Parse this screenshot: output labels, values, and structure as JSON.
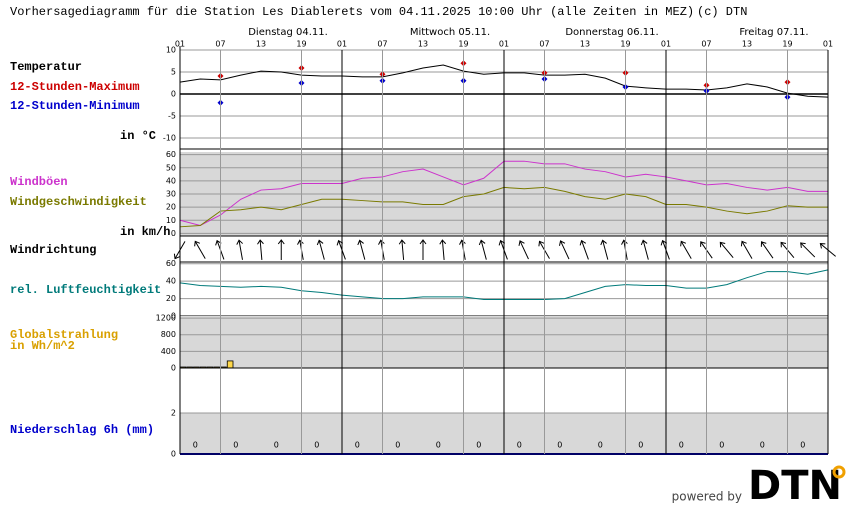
{
  "header": {
    "title": "Vorhersagediagramm für die Station Les Diablerets vom 04.11.2025 10:00 Uhr (alle Zeiten in MEZ)",
    "copyright": "(c) DTN"
  },
  "footer": {
    "powered_by": "powered by",
    "logo": "DTN"
  },
  "chart_data": [
    {
      "type": "line",
      "days": [
        "Dienstag 04.11.",
        "Mittwoch 05.11.",
        "Donnerstag 06.11.",
        "Freitag 07.11."
      ],
      "xlim": [
        0,
        96
      ],
      "xticks": [
        {
          "value": 0,
          "label": "01"
        },
        {
          "value": 6,
          "label": "07"
        },
        {
          "value": 12,
          "label": "13"
        },
        {
          "value": 18,
          "label": "19"
        },
        {
          "value": 24,
          "label": "01"
        },
        {
          "value": 30,
          "label": "07"
        },
        {
          "value": 36,
          "label": "13"
        },
        {
          "value": 42,
          "label": "19"
        },
        {
          "value": 48,
          "label": "01"
        },
        {
          "value": 54,
          "label": "07"
        },
        {
          "value": 60,
          "label": "13"
        },
        {
          "value": 66,
          "label": "19"
        },
        {
          "value": 72,
          "label": "01"
        },
        {
          "value": 78,
          "label": "07"
        },
        {
          "value": 84,
          "label": "13"
        },
        {
          "value": 90,
          "label": "19"
        },
        {
          "value": 96,
          "label": "01"
        }
      ],
      "ylim": [
        -12.5,
        10
      ],
      "yticks": [
        -10,
        -5,
        0,
        5,
        10
      ],
      "y_label": "in °C",
      "series": [
        {
          "name": "Temperatur",
          "color": "#000000",
          "style": "line",
          "x": [
            0,
            3,
            6,
            9,
            12,
            15,
            18,
            21,
            24,
            27,
            30,
            33,
            36,
            39,
            42,
            45,
            48,
            51,
            54,
            57,
            60,
            63,
            66,
            69,
            72,
            75,
            78,
            81,
            84,
            87,
            90,
            93,
            96
          ],
          "values": [
            2.7,
            3.4,
            3.2,
            4.3,
            5.2,
            5.0,
            4.3,
            4.1,
            4.1,
            3.9,
            3.9,
            4.8,
            5.9,
            6.6,
            5.2,
            4.5,
            4.8,
            4.8,
            4.3,
            4.3,
            4.5,
            3.6,
            1.8,
            1.4,
            1.1,
            1.1,
            0.9,
            1.4,
            2.3,
            1.6,
            0.2,
            -0.5,
            -0.7
          ]
        },
        {
          "name": "12-Stunden-Maximum",
          "color": "#cc0000",
          "style": "marker",
          "x": [
            6,
            18,
            30,
            42,
            54,
            66,
            78,
            90
          ],
          "values": [
            4.1,
            5.9,
            4.5,
            7.0,
            4.8,
            4.8,
            2.0,
            2.7
          ]
        },
        {
          "name": "12-Stunden-Minimum",
          "color": "#0000cc",
          "style": "marker",
          "x": [
            6,
            18,
            30,
            42,
            54,
            66,
            78,
            90
          ],
          "values": [
            -2.0,
            2.5,
            3.0,
            3.0,
            3.4,
            1.6,
            0.7,
            -0.7
          ]
        }
      ]
    },
    {
      "type": "line",
      "xlim": [
        0,
        96
      ],
      "ylim": [
        -2,
        62
      ],
      "yticks": [
        0,
        10,
        20,
        30,
        40,
        50,
        60
      ],
      "y_label": "in km/h",
      "background": "#d8d8d8",
      "series": [
        {
          "name": "Windböen",
          "color": "#cc33cc",
          "style": "line",
          "x": [
            0,
            3,
            6,
            9,
            12,
            15,
            18,
            21,
            24,
            27,
            30,
            33,
            36,
            39,
            42,
            45,
            48,
            51,
            54,
            57,
            60,
            63,
            66,
            69,
            72,
            75,
            78,
            81,
            84,
            87,
            90,
            93,
            96
          ],
          "values": [
            10,
            6,
            14,
            26,
            33,
            34,
            38,
            38,
            38,
            42,
            43,
            47,
            49,
            43,
            37,
            42,
            55,
            55,
            53,
            53,
            49,
            47,
            43,
            45,
            43,
            40,
            37,
            38,
            35,
            33,
            35,
            32,
            32
          ]
        },
        {
          "name": "Windgeschwindigkeit",
          "color": "#7a7a00",
          "style": "line",
          "x": [
            0,
            3,
            6,
            9,
            12,
            15,
            18,
            21,
            24,
            27,
            30,
            33,
            36,
            39,
            42,
            45,
            48,
            51,
            54,
            57,
            60,
            63,
            66,
            69,
            72,
            75,
            78,
            81,
            84,
            87,
            90,
            93,
            96
          ],
          "values": [
            5,
            6,
            17,
            18,
            20,
            18,
            22,
            26,
            26,
            25,
            24,
            24,
            22,
            22,
            28,
            30,
            35,
            34,
            35,
            32,
            28,
            26,
            30,
            28,
            22,
            22,
            20,
            17,
            15,
            17,
            21,
            20,
            20
          ]
        }
      ]
    },
    {
      "type": "wind_direction",
      "title": "Windrichtung",
      "xlim": [
        0,
        96
      ],
      "x": [
        0,
        3,
        6,
        9,
        12,
        15,
        18,
        21,
        24,
        27,
        30,
        33,
        36,
        39,
        42,
        45,
        48,
        51,
        54,
        57,
        60,
        63,
        66,
        69,
        72,
        75,
        78,
        81,
        84,
        87,
        90,
        93,
        96
      ],
      "values": [
        210,
        330,
        340,
        350,
        355,
        0,
        350,
        345,
        340,
        345,
        350,
        355,
        0,
        355,
        350,
        345,
        340,
        335,
        330,
        335,
        340,
        345,
        350,
        345,
        340,
        330,
        325,
        320,
        330,
        325,
        320,
        315,
        310
      ]
    },
    {
      "type": "line",
      "xlim": [
        0,
        96
      ],
      "ylim": [
        0,
        62
      ],
      "yticks": [
        0,
        20,
        40,
        60
      ],
      "series": [
        {
          "name": "rel. Luftfeuchtigkeit",
          "color": "#007a7a",
          "style": "line",
          "x": [
            0,
            3,
            6,
            9,
            12,
            15,
            18,
            21,
            24,
            27,
            30,
            33,
            36,
            39,
            42,
            45,
            48,
            51,
            54,
            57,
            60,
            63,
            66,
            69,
            72,
            75,
            78,
            81,
            84,
            87,
            90,
            93,
            96
          ],
          "values": [
            38,
            35,
            34,
            33,
            34,
            33,
            29,
            27,
            24,
            22,
            20,
            20,
            22,
            22,
            22,
            19,
            19,
            19,
            19,
            20,
            27,
            34,
            36,
            35,
            35,
            32,
            32,
            36,
            44,
            51,
            51,
            48,
            53
          ]
        }
      ]
    },
    {
      "type": "bar",
      "title": "Globalstrahlung",
      "y_label": "in Wh/m^2",
      "title_color": "#d9a000",
      "color": "#ffd84a",
      "xlim": [
        0,
        96
      ],
      "ylim": [
        0,
        1250
      ],
      "yticks": [
        0,
        400,
        800,
        1200
      ],
      "background": "#d8d8d8",
      "x": [
        0,
        1,
        2,
        3,
        4,
        5,
        6,
        7
      ],
      "values": [
        0,
        0,
        0,
        0,
        0,
        0,
        0,
        170
      ]
    },
    {
      "type": "precip",
      "title": "Niederschlag 6h (mm)",
      "title_color": "#0000cc",
      "color": "#0000cc",
      "xlim": [
        0,
        96
      ],
      "ylim": [
        0,
        4.2
      ],
      "yticks": [
        0,
        2
      ],
      "background": "#d8d8d8",
      "x": [
        3,
        9,
        15,
        21,
        27,
        33,
        39,
        45,
        51,
        57,
        63,
        69,
        75,
        81,
        87,
        93
      ],
      "values": [
        0,
        0,
        0,
        0,
        0,
        0,
        0,
        0,
        0,
        0,
        0,
        0,
        0,
        0,
        0,
        0
      ]
    }
  ]
}
